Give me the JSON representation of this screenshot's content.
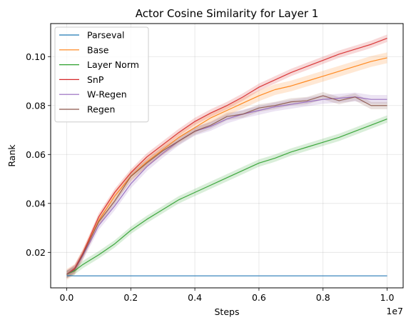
{
  "chart_data": {
    "type": "line",
    "title": "Actor Cosine Similarity for Layer 1",
    "xlabel": "Steps",
    "ylabel": "Rank",
    "x_offset_label": "1e7",
    "xlim": [
      -0.05,
      1.05
    ],
    "ylim": [
      0.0055,
      0.1135
    ],
    "x_ticks": [
      0.0,
      0.2,
      0.4,
      0.6,
      0.8,
      1.0
    ],
    "x_tick_labels": [
      "0.0",
      "0.2",
      "0.4",
      "0.6",
      "0.8",
      "1.0"
    ],
    "y_ticks": [
      0.02,
      0.04,
      0.06,
      0.08,
      0.1
    ],
    "y_tick_labels": [
      "0.02",
      "0.04",
      "0.06",
      "0.08",
      "0.10"
    ],
    "grid": true,
    "legend_position": "upper-left",
    "x": [
      0.0,
      0.025,
      0.05,
      0.1,
      0.15,
      0.2,
      0.25,
      0.3,
      0.35,
      0.4,
      0.45,
      0.5,
      0.55,
      0.6,
      0.65,
      0.7,
      0.75,
      0.8,
      0.85,
      0.9,
      0.95,
      1.0
    ],
    "series": [
      {
        "name": "Parseval",
        "color": "#1f77b4",
        "band": 0.0002,
        "values": [
          0.0105,
          0.0104,
          0.0104,
          0.0104,
          0.0104,
          0.0104,
          0.0104,
          0.0104,
          0.0104,
          0.0104,
          0.0104,
          0.0104,
          0.0104,
          0.0104,
          0.0104,
          0.0104,
          0.0104,
          0.0104,
          0.0104,
          0.0104,
          0.0104,
          0.0104
        ]
      },
      {
        "name": "Base",
        "color": "#ff7f0e",
        "band": 0.0022,
        "values": [
          0.011,
          0.013,
          0.019,
          0.033,
          0.043,
          0.051,
          0.057,
          0.062,
          0.067,
          0.071,
          0.075,
          0.078,
          0.081,
          0.084,
          0.0865,
          0.088,
          0.09,
          0.092,
          0.094,
          0.096,
          0.098,
          0.0995
        ]
      },
      {
        "name": "Layer Norm",
        "color": "#2ca02c",
        "band": 0.0015,
        "values": [
          0.011,
          0.0125,
          0.015,
          0.019,
          0.0235,
          0.029,
          0.0335,
          0.0375,
          0.0415,
          0.0445,
          0.0475,
          0.0505,
          0.0535,
          0.0565,
          0.0585,
          0.061,
          0.063,
          0.065,
          0.067,
          0.0695,
          0.072,
          0.0745
        ]
      },
      {
        "name": "SnP",
        "color": "#d62728",
        "band": 0.0015,
        "values": [
          0.011,
          0.0135,
          0.0195,
          0.0345,
          0.0445,
          0.0525,
          0.059,
          0.064,
          0.069,
          0.0735,
          0.077,
          0.08,
          0.0835,
          0.0875,
          0.0905,
          0.0935,
          0.096,
          0.0985,
          0.101,
          0.103,
          0.105,
          0.1075
        ]
      },
      {
        "name": "W-Regen",
        "color": "#9467bd",
        "band": 0.0018,
        "values": [
          0.011,
          0.013,
          0.0185,
          0.031,
          0.039,
          0.048,
          0.055,
          0.0605,
          0.0655,
          0.0695,
          0.0715,
          0.0745,
          0.0765,
          0.078,
          0.0795,
          0.0805,
          0.0815,
          0.0825,
          0.083,
          0.0835,
          0.0825,
          0.0825
        ]
      },
      {
        "name": "Regen",
        "color": "#8c564b",
        "band": 0.0015,
        "values": [
          0.011,
          0.013,
          0.019,
          0.0325,
          0.041,
          0.051,
          0.0565,
          0.0615,
          0.0655,
          0.0695,
          0.072,
          0.0755,
          0.0765,
          0.079,
          0.08,
          0.0815,
          0.082,
          0.084,
          0.082,
          0.0835,
          0.08,
          0.08
        ]
      }
    ]
  }
}
